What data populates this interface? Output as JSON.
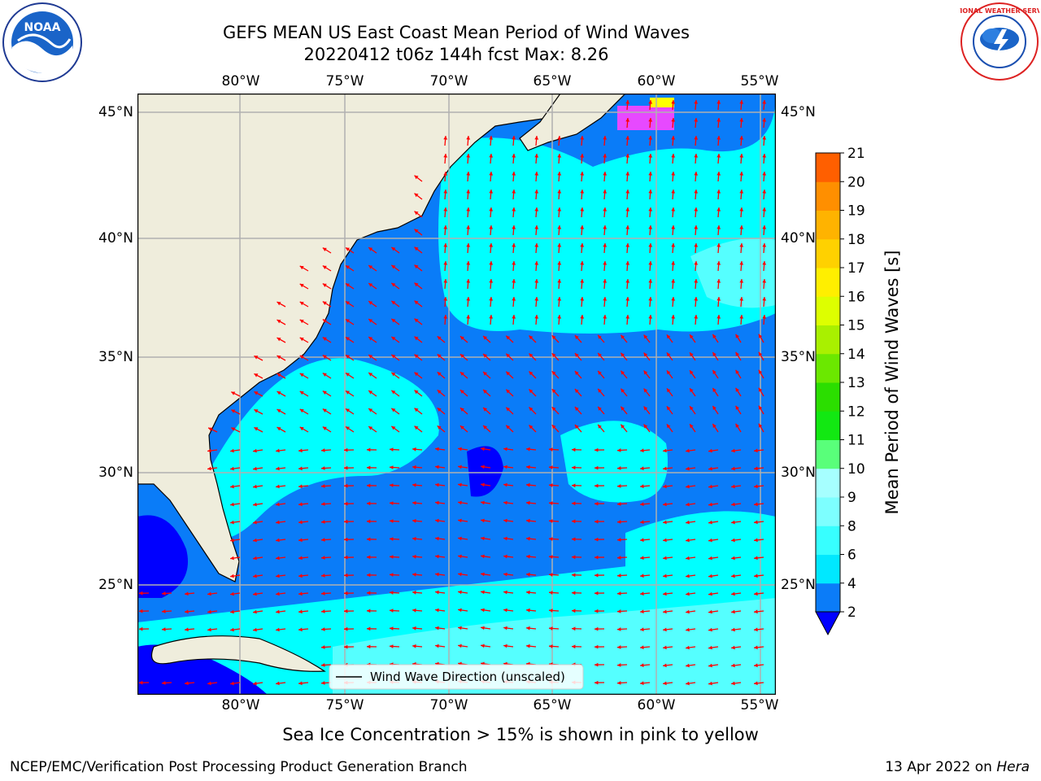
{
  "header": {
    "title_line1": "GEFS MEAN US East Coast Mean Period of Wind Waves",
    "title_line2": "20220412 t06z 144h fcst   Max: 8.26"
  },
  "logos": {
    "left": {
      "name": "noaa-logo",
      "text": "NOAA"
    },
    "right": {
      "name": "nws-logo",
      "text": "NATIONAL WEATHER SERVICE"
    }
  },
  "map": {
    "lon_ticks": [
      "80°W",
      "75°W",
      "70°W",
      "65°W",
      "60°W",
      "55°W"
    ],
    "lat_ticks": [
      "45°N",
      "40°N",
      "35°N",
      "30°N",
      "25°N"
    ],
    "legend_label": "Wind Wave Direction (unscaled)",
    "colors": {
      "land": "#efeddc",
      "band_lt2": "#0000ff",
      "band_2_4": "#0a7cf8",
      "band_4_6": "#00ffff",
      "band_6_8": "#55ffff",
      "arrow": "#ff0000",
      "grid": "#b0b0b0",
      "ice": "#ff44ff"
    }
  },
  "colorbar": {
    "label": "Mean Period of Wind Waves [s]",
    "ticks": [
      "2",
      "4",
      "6",
      "8",
      "9",
      "10",
      "11",
      "12",
      "13",
      "14",
      "15",
      "16",
      "17",
      "18",
      "19",
      "20",
      "21"
    ],
    "colors": [
      "#0b7cf8",
      "#00e8ff",
      "#37ffff",
      "#7dffff",
      "#a6ffff",
      "#59ff7a",
      "#12e812",
      "#2bde00",
      "#6be800",
      "#a9f000",
      "#ddff00",
      "#ffef00",
      "#ffd100",
      "#ffb300",
      "#ff8f00",
      "#ff5f00",
      "#ff2a00",
      "#ff0000"
    ],
    "extend_color": "#0000ff"
  },
  "caption": "Sea Ice Concentration > 15% is shown in pink to yellow",
  "footer": {
    "left": "NCEP/EMC/Verification Post Processing Product Generation Branch",
    "right_date": "13 Apr 2022 on ",
    "right_host": "Hera"
  }
}
